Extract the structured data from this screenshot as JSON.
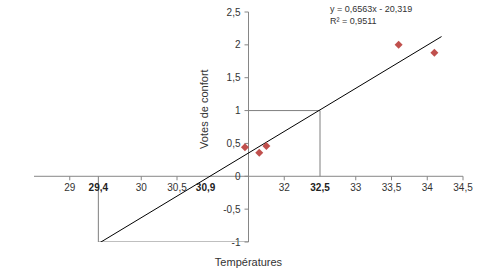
{
  "chart_data": {
    "type": "scatter",
    "x_label": "Températures",
    "y_label": "Votes de confort",
    "x": [
      31.45,
      31.65,
      31.75,
      33.6,
      34.1
    ],
    "values": [
      0.44,
      0.36,
      0.46,
      2.0,
      1.88
    ],
    "color": "#c0504d",
    "marker": "diamond",
    "xlim": [
      28.5,
      34.5
    ],
    "xticks": [
      29,
      30,
      {
        "value": 30.5,
        "label": "30,5"
      },
      32,
      33,
      {
        "value": 33.5,
        "label": "33,5"
      },
      34,
      {
        "value": 34.5,
        "label": "34,5"
      }
    ],
    "ylim": [
      -1,
      2.5
    ],
    "yticks": [
      -1,
      {
        "value": -0.5,
        "label": "-0,5"
      },
      0,
      {
        "value": 0.5,
        "label": "0,5"
      },
      1,
      {
        "value": 1.5,
        "label": "1,5"
      },
      2,
      {
        "value": 2.5,
        "label": "2,5"
      }
    ],
    "grid": false,
    "trendline": {
      "slope": 0.6563,
      "intercept": -20.319,
      "x": [
        29.4,
        34.2
      ],
      "equation": "y = 0,6563x - 20,319",
      "r2": 0.9511,
      "r2_label": "R² = 0,9511"
    },
    "annotations": [
      {
        "x": 29.4,
        "y": -1,
        "label": "29,4"
      },
      {
        "x": 30.9,
        "y": 0,
        "label": "30,9"
      },
      {
        "x": 32.5,
        "y": 1,
        "label": "32,5"
      }
    ]
  }
}
